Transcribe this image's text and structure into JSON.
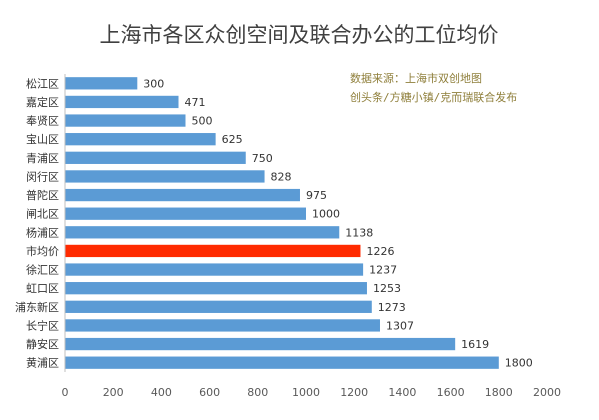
{
  "chart_data": {
    "type": "bar",
    "orientation": "horizontal",
    "title": "上海市各区众创空间及联合办公的工位均价",
    "annotation": [
      "数据来源：上海市双创地图",
      "创头条/方糖小镇/克而瑞联合发布"
    ],
    "categories": [
      "松江区",
      "嘉定区",
      "奉贤区",
      "宝山区",
      "青浦区",
      "闵行区",
      "普陀区",
      "闸北区",
      "杨浦区",
      "市均价",
      "徐汇区",
      "虹口区",
      "浦东新区",
      "长宁区",
      "静安区",
      "黄浦区"
    ],
    "values": [
      300,
      471,
      500,
      625,
      750,
      828,
      975,
      1000,
      1138,
      1226,
      1237,
      1253,
      1273,
      1307,
      1619,
      1800
    ],
    "highlight_category": "市均价",
    "xlim": [
      0,
      2000
    ],
    "xticks": [
      0,
      200,
      400,
      600,
      800,
      1000,
      1200,
      1400,
      1600,
      1800,
      2000
    ],
    "grid": false,
    "legend": "none",
    "colors": {
      "bar": "#5B9BD5",
      "highlight": "#FF2A00",
      "annotation": "#8F7F3B"
    }
  }
}
